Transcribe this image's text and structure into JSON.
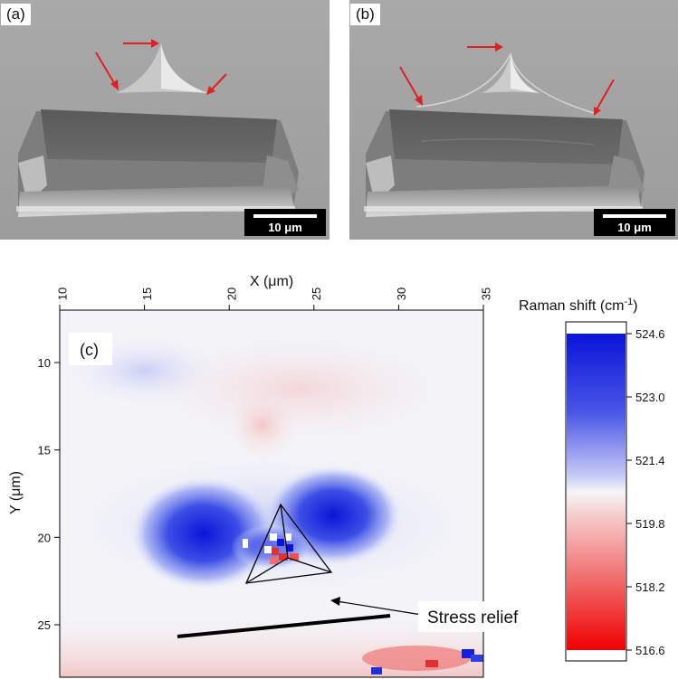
{
  "panels": {
    "a": {
      "label": "(a)",
      "scale_bar": "10 μm"
    },
    "b": {
      "label": "(b)",
      "scale_bar": "10 μm"
    },
    "c": {
      "label": "(c)"
    }
  },
  "chart_data": {
    "type": "heatmap",
    "xlabel": "X (μm)",
    "ylabel": "Y (μm)",
    "x_ticks": [
      "10",
      "15",
      "20",
      "25",
      "30",
      "35"
    ],
    "y_ticks": [
      "10",
      "15",
      "20",
      "25"
    ],
    "xlim": [
      10,
      35
    ],
    "ylim": [
      7,
      28
    ],
    "y_inverted": true,
    "x_axis_position": "top",
    "colorbar": {
      "title": "Raman shift (cm",
      "title_sup": "-1",
      "title_end": ")",
      "tick_labels": [
        "524.6",
        "523.0",
        "521.4",
        "519.8",
        "518.2",
        "516.6"
      ],
      "range": [
        516.6,
        524.6
      ]
    },
    "annotation": "Stress relief",
    "colors": {
      "high": "#0b14d8",
      "mid": "#f3f3f7",
      "low": "#f00000",
      "arrow": "#e02020"
    }
  }
}
